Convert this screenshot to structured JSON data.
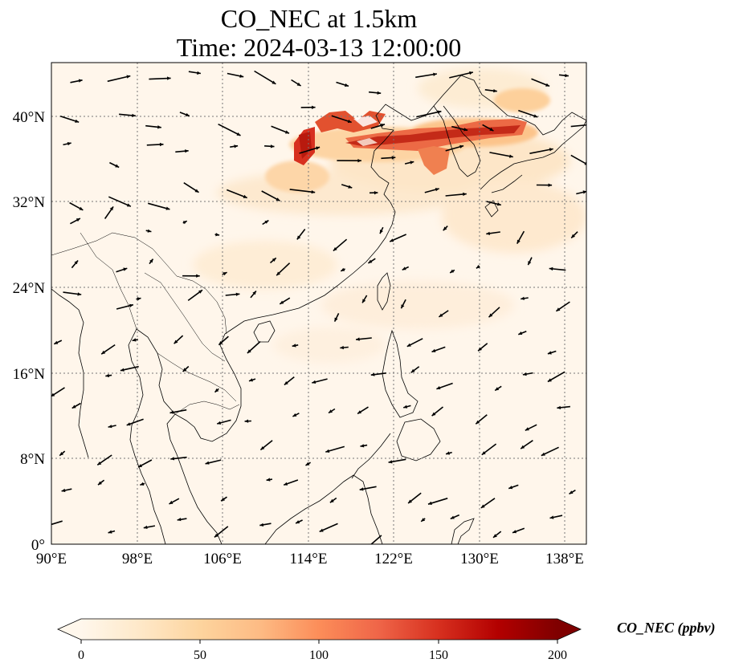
{
  "title": {
    "line1": "CO_NEC at 1.5km",
    "line2": "Time: 2024-03-13 12:00:00"
  },
  "map": {
    "lon_range": [
      90,
      140
    ],
    "lat_range": [
      0,
      45
    ],
    "x_ticks": [
      {
        "lon": 90,
        "label": "90°E"
      },
      {
        "lon": 98,
        "label": "98°E"
      },
      {
        "lon": 106,
        "label": "106°E"
      },
      {
        "lon": 114,
        "label": "114°E"
      },
      {
        "lon": 122,
        "label": "122°E"
      },
      {
        "lon": 130,
        "label": "130°E"
      },
      {
        "lon": 138,
        "label": "138°E"
      }
    ],
    "y_ticks": [
      {
        "lat": 0,
        "label": "0°"
      },
      {
        "lat": 8,
        "label": "8°N"
      },
      {
        "lat": 16,
        "label": "16°N"
      },
      {
        "lat": 24,
        "label": "24°N"
      },
      {
        "lat": 32,
        "label": "32°N"
      },
      {
        "lat": 40,
        "label": "40°N"
      }
    ],
    "colormap": "OrRd",
    "colors": [
      "#fff7ec",
      "#fee8c8",
      "#fdd49e",
      "#fdbb84",
      "#fc8d59",
      "#ef6548",
      "#d7301f",
      "#b30000",
      "#7f0000"
    ],
    "vector_field": "wind arrows",
    "gridlines": "dotted"
  },
  "colorbar": {
    "label": "CO_NEC (ppbv)",
    "min": 0,
    "max": 200,
    "extend": "both",
    "ticks": [
      {
        "value": 0,
        "label": "0"
      },
      {
        "value": 50,
        "label": "50"
      },
      {
        "value": 100,
        "label": "100"
      },
      {
        "value": 150,
        "label": "150"
      },
      {
        "value": 200,
        "label": "200"
      }
    ]
  }
}
